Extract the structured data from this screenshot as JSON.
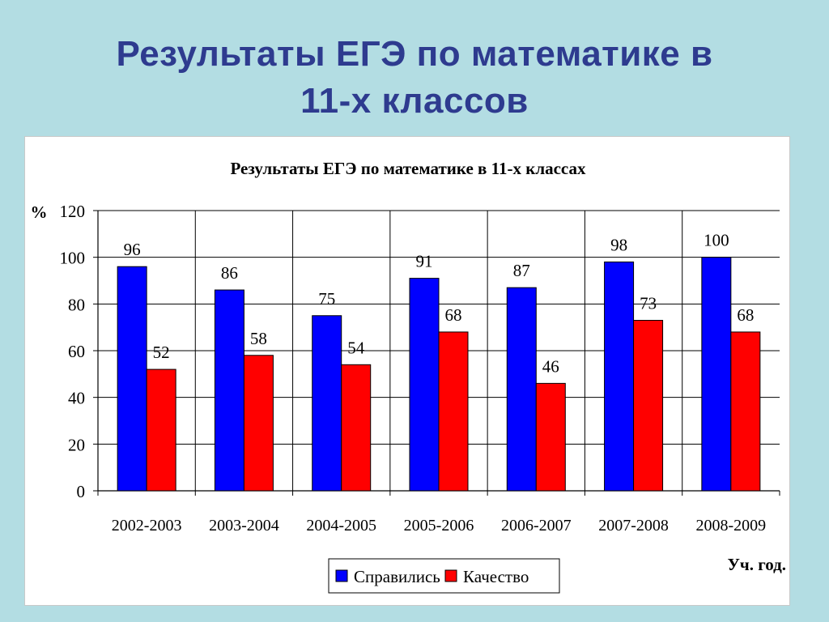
{
  "slide": {
    "title_line1": "Результаты ЕГЭ по математике в",
    "title_line2": "11-х классов"
  },
  "chart_data": {
    "type": "bar",
    "title": "Результаты ЕГЭ по математике в 11-х классах",
    "ylabel": "%",
    "xlabel": "Уч. год.",
    "ylim": [
      0,
      120
    ],
    "yticks": [
      0,
      20,
      40,
      60,
      80,
      100,
      120
    ],
    "grid": true,
    "legend_position": "bottom-center",
    "categories": [
      "2002-2003",
      "2003-2004",
      "2004-2005",
      "2005-2006",
      "2006-2007",
      "2007-2008",
      "2008-2009"
    ],
    "series": [
      {
        "name": "Справились",
        "color": "#0000ff",
        "values": [
          96,
          86,
          75,
          91,
          87,
          98,
          100
        ]
      },
      {
        "name": "Качество",
        "color": "#ff0000",
        "values": [
          52,
          58,
          54,
          68,
          46,
          73,
          68
        ]
      }
    ]
  }
}
